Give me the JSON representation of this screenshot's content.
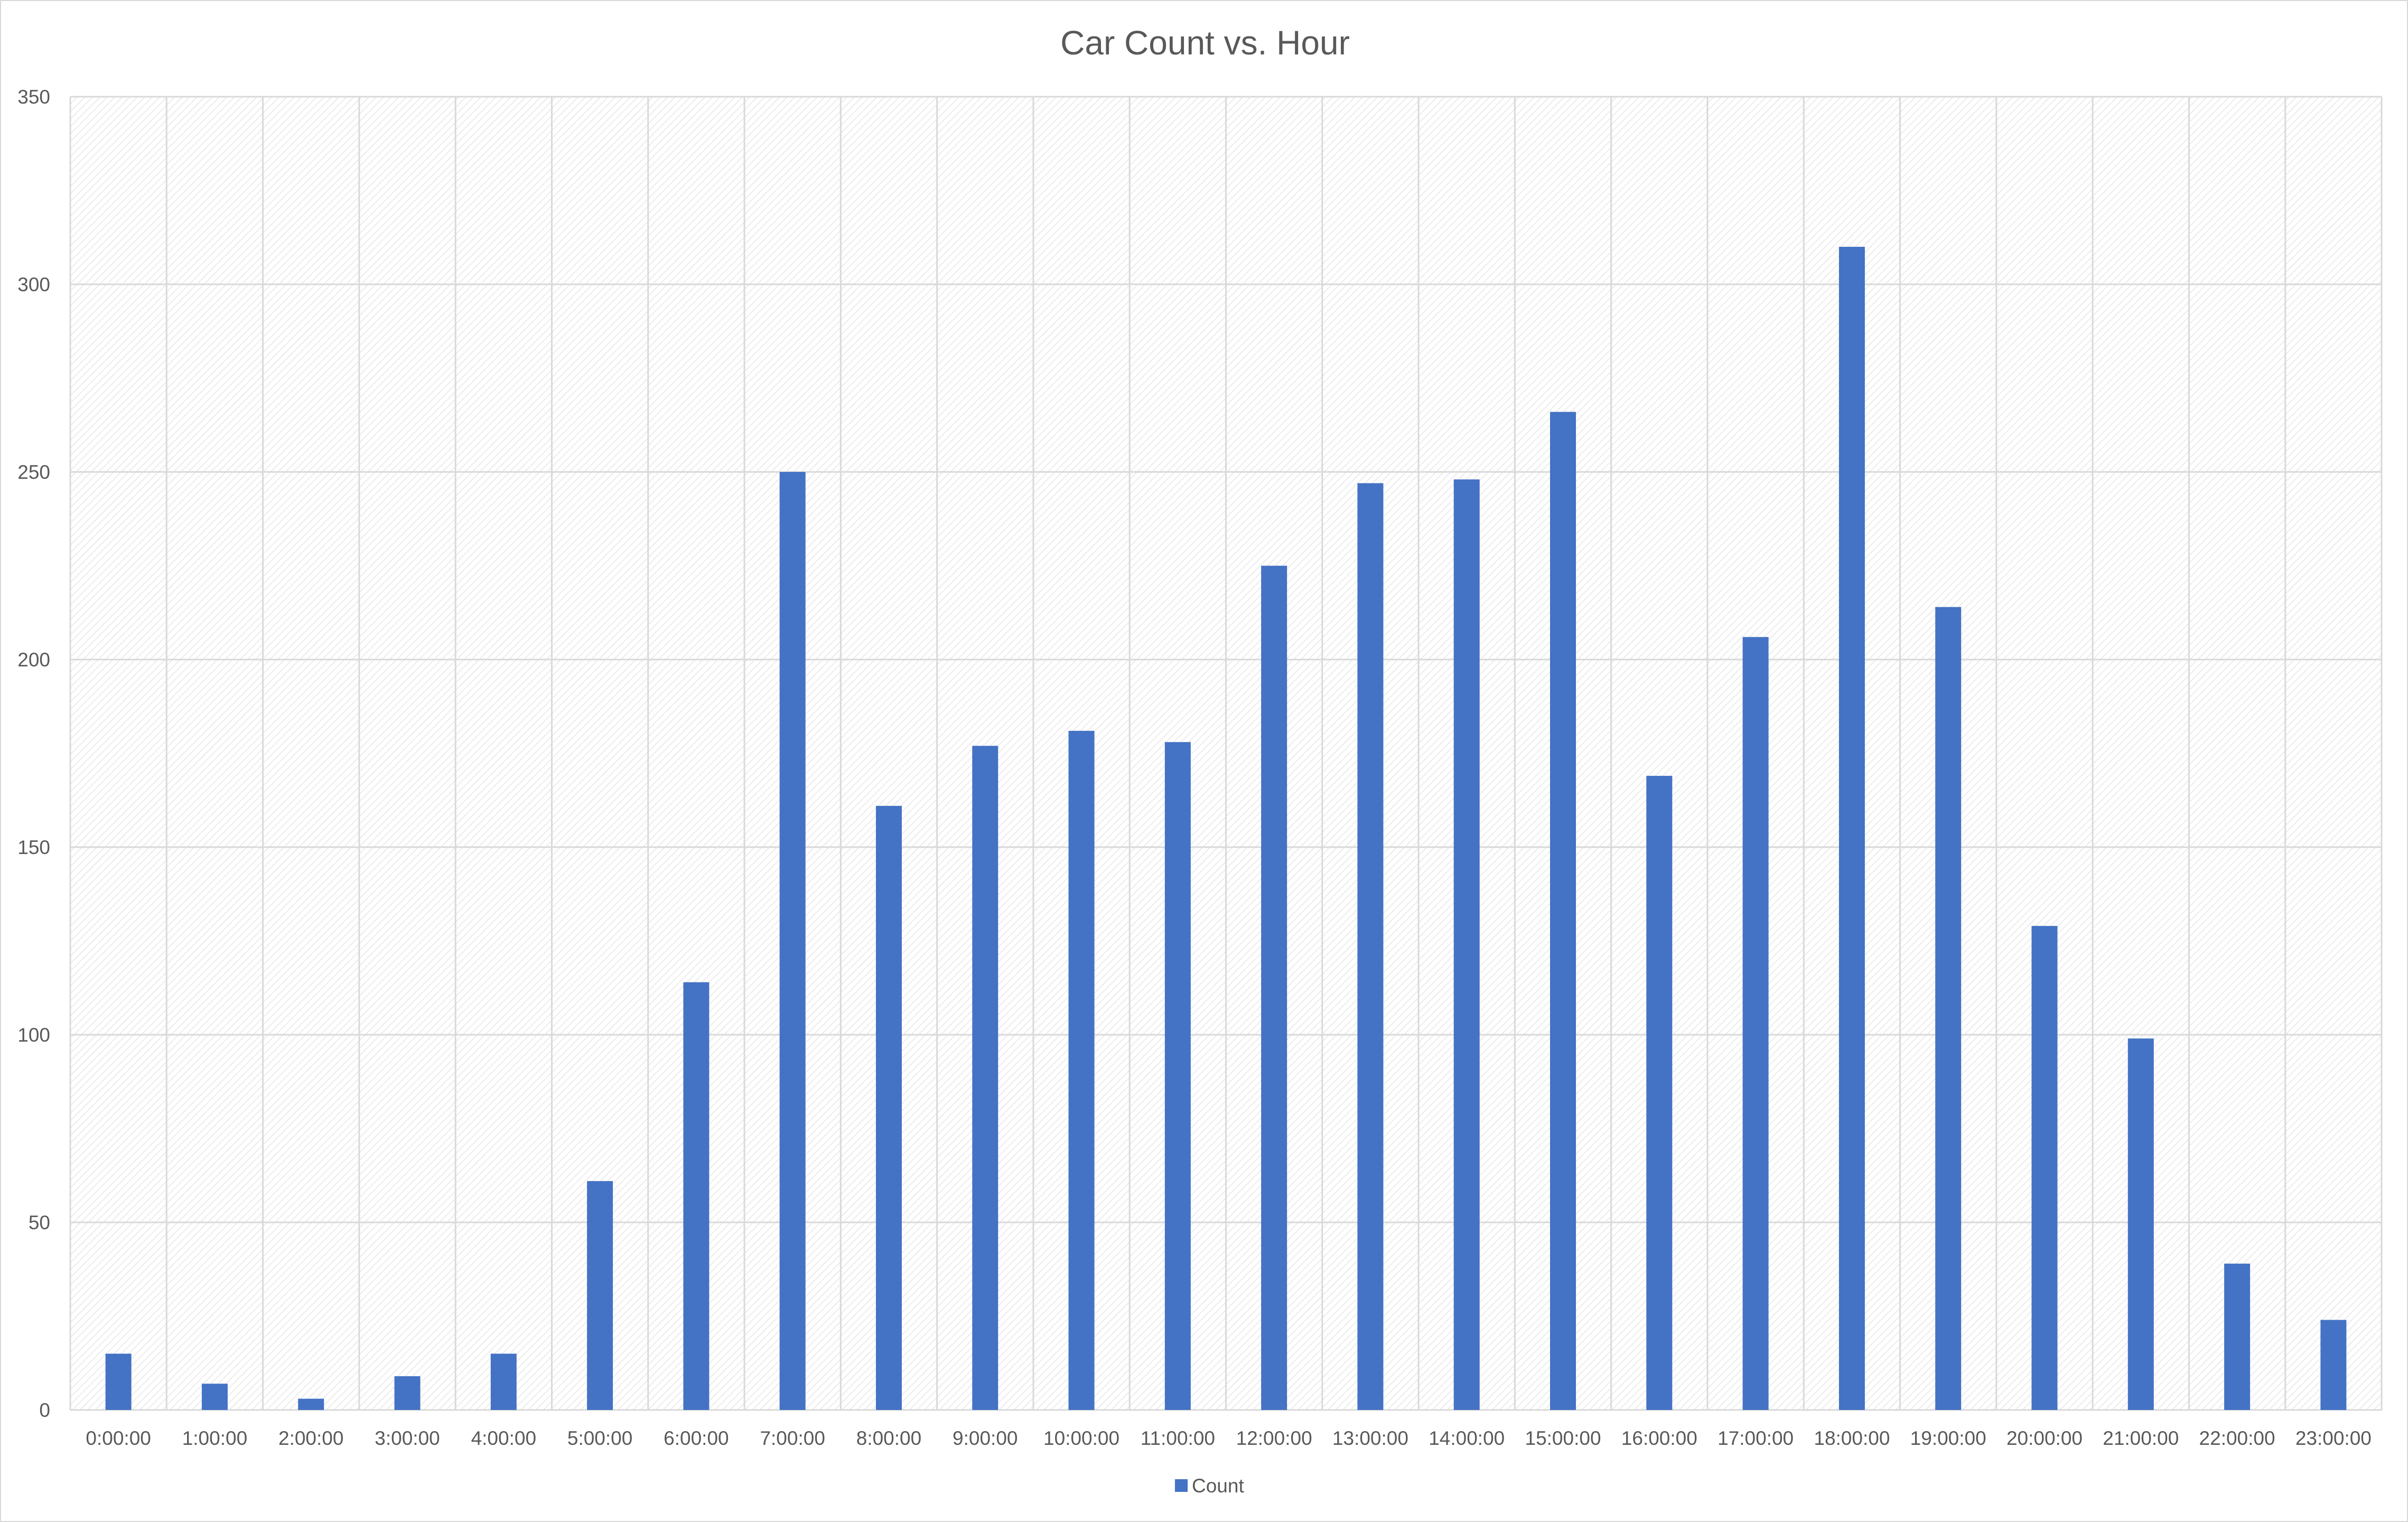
{
  "chart_data": {
    "type": "bar",
    "title": "Car Count vs. Hour",
    "xlabel": "",
    "ylabel": "",
    "categories": [
      "0:00:00",
      "1:00:00",
      "2:00:00",
      "3:00:00",
      "4:00:00",
      "5:00:00",
      "6:00:00",
      "7:00:00",
      "8:00:00",
      "9:00:00",
      "10:00:00",
      "11:00:00",
      "12:00:00",
      "13:00:00",
      "14:00:00",
      "15:00:00",
      "16:00:00",
      "17:00:00",
      "18:00:00",
      "19:00:00",
      "20:00:00",
      "21:00:00",
      "22:00:00",
      "23:00:00"
    ],
    "series": [
      {
        "name": "Count",
        "color": "#4472c4",
        "values": [
          15,
          7,
          3,
          9,
          15,
          61,
          114,
          250,
          161,
          177,
          181,
          178,
          225,
          247,
          248,
          266,
          169,
          206,
          310,
          214,
          129,
          99,
          39,
          24
        ]
      }
    ],
    "ylim": [
      0,
      350
    ],
    "yticks": [
      0,
      50,
      100,
      150,
      200,
      250,
      300,
      350
    ],
    "grid": true,
    "legend": "bottom",
    "plot_background": "hatched"
  }
}
